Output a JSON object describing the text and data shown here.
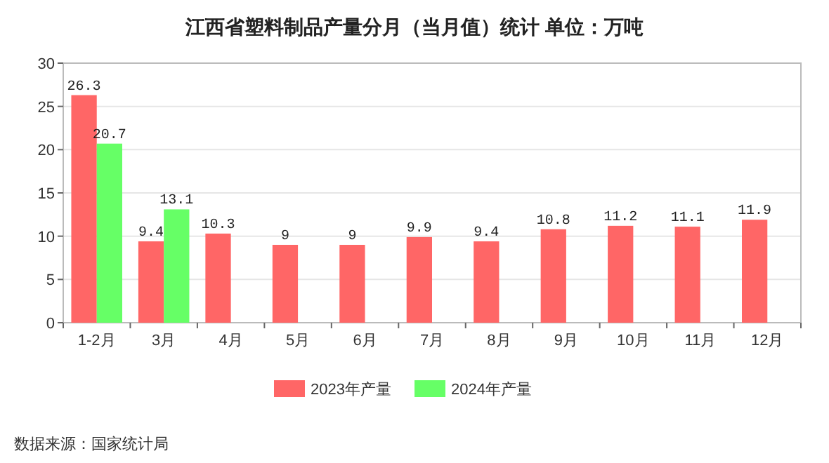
{
  "chart_data": {
    "type": "bar",
    "title": "江西省塑料制品产量分月（当月值）统计 单位：万吨",
    "categories": [
      "1-2月",
      "3月",
      "4月",
      "5月",
      "6月",
      "7月",
      "8月",
      "9月",
      "10月",
      "11月",
      "12月"
    ],
    "series": [
      {
        "name": "2023年产量",
        "color": "#ff6666",
        "values": [
          26.3,
          9.4,
          10.3,
          9,
          9,
          9.9,
          9.4,
          10.8,
          11.2,
          11.1,
          11.9
        ]
      },
      {
        "name": "2024年产量",
        "color": "#66ff66",
        "values": [
          20.7,
          13.1,
          null,
          null,
          null,
          null,
          null,
          null,
          null,
          null,
          null
        ]
      }
    ],
    "ylim": [
      0,
      30
    ],
    "yticks": [
      0,
      5,
      10,
      15,
      20,
      25,
      30
    ],
    "grid": "y",
    "legend": "bottom",
    "data_labels": true,
    "annotations": [
      "数据来源：国家统计局"
    ]
  }
}
